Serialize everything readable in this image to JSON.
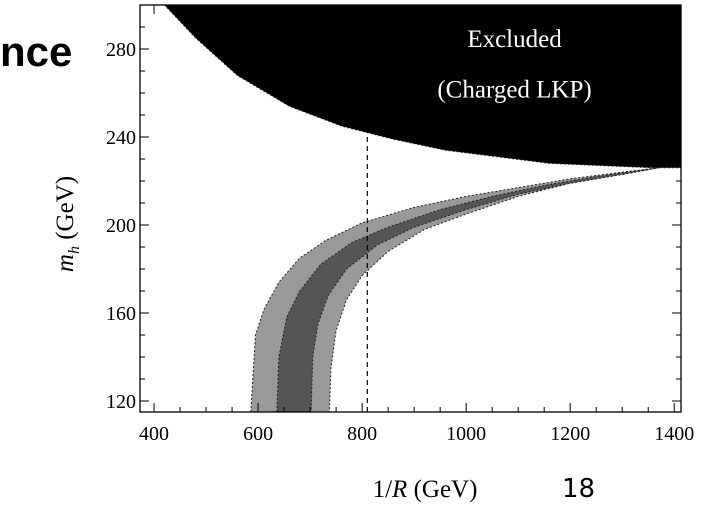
{
  "slide": {
    "title_fragment": "nce",
    "page_number": "18"
  },
  "chart_data": {
    "type": "area",
    "title": "",
    "xlabel": "1/R (GeV)",
    "ylabel": "m_h (GeV)",
    "xlim": [
      373,
      1413
    ],
    "ylim": [
      115,
      300
    ],
    "xticks": [
      400,
      600,
      800,
      1000,
      1200,
      1400
    ],
    "yticks": [
      120,
      160,
      200,
      240,
      280
    ],
    "grid": false,
    "annotations": [
      {
        "text": "Excluded",
        "x": 1093,
        "y": 281
      },
      {
        "text": "(Charged LKP)",
        "x": 1093,
        "y": 258
      }
    ],
    "reference_line": {
      "x": 810,
      "style": "dashed"
    },
    "regions": [
      {
        "name": "Excluded (Charged LKP)",
        "color": "#000000",
        "lower_boundary": [
          [
            420,
            300
          ],
          [
            480,
            285
          ],
          [
            560,
            268
          ],
          [
            660,
            254
          ],
          [
            760,
            245
          ],
          [
            860,
            239
          ],
          [
            960,
            234
          ],
          [
            1060,
            231
          ],
          [
            1160,
            228
          ],
          [
            1260,
            227
          ],
          [
            1360,
            226
          ],
          [
            1413,
            226
          ]
        ]
      },
      {
        "name": "outer band",
        "color": "#999999",
        "upper": [
          [
            586,
            115
          ],
          [
            595,
            150
          ],
          [
            612,
            162
          ],
          [
            640,
            174
          ],
          [
            680,
            185
          ],
          [
            730,
            193
          ],
          [
            800,
            201
          ],
          [
            900,
            208
          ],
          [
            1000,
            213
          ],
          [
            1100,
            217
          ],
          [
            1200,
            221
          ],
          [
            1300,
            224
          ],
          [
            1370,
            226
          ]
        ],
        "lower": [
          [
            737,
            115
          ],
          [
            740,
            135
          ],
          [
            750,
            152
          ],
          [
            770,
            166
          ],
          [
            800,
            177
          ],
          [
            850,
            188
          ],
          [
            920,
            198
          ],
          [
            1000,
            205
          ],
          [
            1100,
            213
          ],
          [
            1200,
            219
          ],
          [
            1300,
            223
          ],
          [
            1370,
            226
          ]
        ]
      },
      {
        "name": "inner band",
        "color": "#555555",
        "upper": [
          [
            636,
            115
          ],
          [
            640,
            140
          ],
          [
            655,
            158
          ],
          [
            680,
            170
          ],
          [
            720,
            182
          ],
          [
            780,
            192
          ],
          [
            850,
            199
          ],
          [
            950,
            207
          ],
          [
            1050,
            213
          ],
          [
            1150,
            218
          ],
          [
            1250,
            222
          ],
          [
            1370,
            226
          ]
        ],
        "lower": [
          [
            702,
            115
          ],
          [
            705,
            140
          ],
          [
            715,
            155
          ],
          [
            735,
            168
          ],
          [
            770,
            180
          ],
          [
            830,
            191
          ],
          [
            900,
            199
          ],
          [
            1000,
            207
          ],
          [
            1100,
            214
          ],
          [
            1200,
            219
          ],
          [
            1300,
            223
          ],
          [
            1370,
            226
          ]
        ]
      }
    ]
  }
}
